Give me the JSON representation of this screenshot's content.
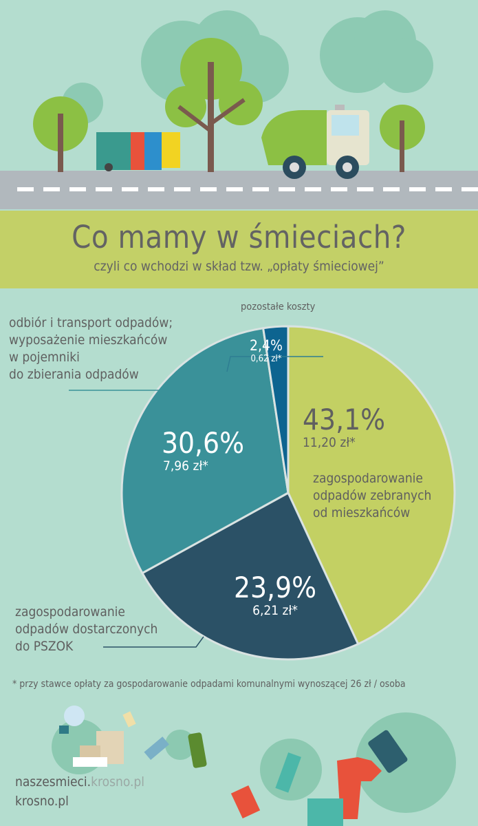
{
  "header": {
    "title": "Co mamy w śmieciach?",
    "subtitle": "czyli co wchodzi w skład tzw. „opłaty śmieciowej”"
  },
  "colors": {
    "background": "#b4ddcf",
    "title_band": "#c3d067",
    "road": "#b1b8bd"
  },
  "chart_data": {
    "type": "pie",
    "start": "top",
    "direction": "clockwise",
    "slices": [
      {
        "label": "zagospodarowanie odpadów zebranych od mieszkańców",
        "percent": 43.1,
        "percent_text": "43,1%",
        "amount_text": "11,20 zł*",
        "color": "#c3d063"
      },
      {
        "label": "zagospodarowanie odpadów dostarczonych do PSZOK",
        "percent": 23.9,
        "percent_text": "23,9%",
        "amount_text": "6,21 zł*",
        "color": "#2b5166"
      },
      {
        "label": "odbiór i transport odpadów; wyposażenie mieszkańców w pojemniki do zbierania odpadów",
        "percent": 30.6,
        "percent_text": "30,6%",
        "amount_text": "7,96 zł*",
        "color": "#3a9199"
      },
      {
        "label": "pozostałe koszty",
        "percent": 2.4,
        "percent_text": "2,4%",
        "amount_text": "0,62 zł*",
        "color": "#0d6490"
      }
    ]
  },
  "labels": {
    "green": [
      "zagospodarowanie",
      "odpadów zebranych",
      "od mieszkańców"
    ],
    "dark": [
      "zagospodarowanie",
      "odpadów dostarczonych",
      "do PSZOK"
    ],
    "teal": [
      "odbiór i transport odpadów;",
      "wyposażenie mieszkańców",
      "w pojemniki",
      "do zbierania odpadów"
    ],
    "blue": "pozostałe koszty"
  },
  "footnote": "* przy stawce opłaty za gospodarowanie odpadami komunalnymi wynoszącej 26 zł / osoba",
  "footer": {
    "site_main": "naszesmieci.",
    "site_domain": "krosno.pl",
    "site2": "krosno.pl"
  }
}
